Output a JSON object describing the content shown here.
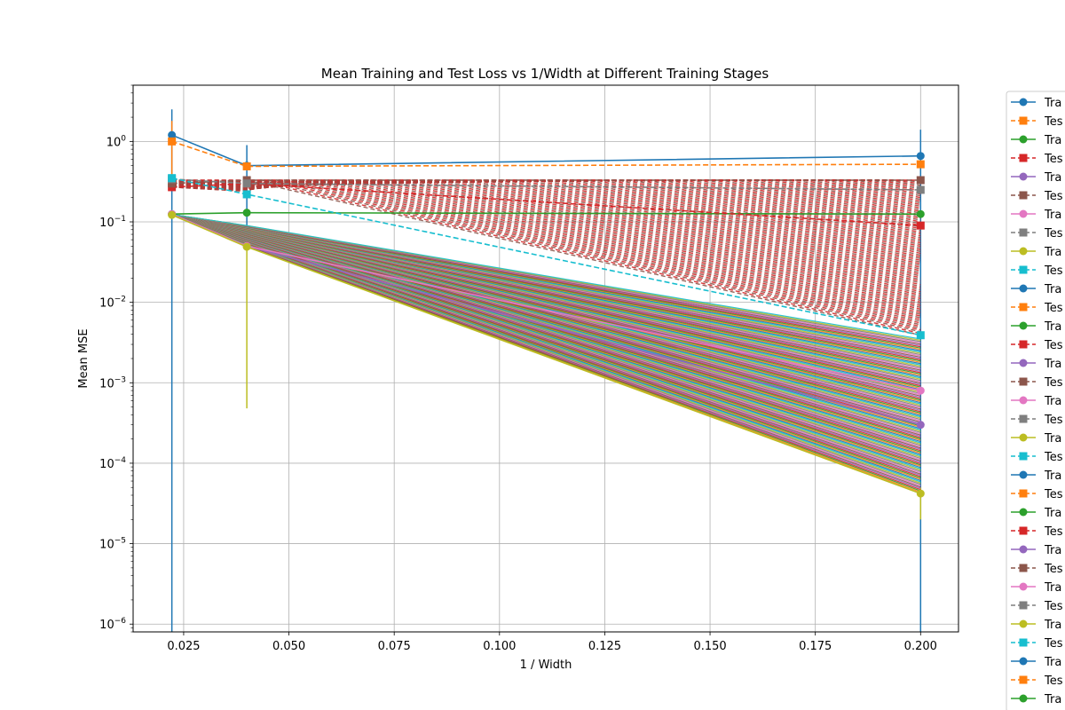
{
  "chart_data": {
    "type": "line",
    "title": "Mean Training and Test Loss vs 1/Width at Different Training Stages",
    "xlabel": "1 / Width",
    "ylabel": "Mean MSE",
    "yscale": "log",
    "xlim": [
      0.013,
      0.209
    ],
    "ylim": [
      8e-07,
      5
    ],
    "xticks": [
      "0.025",
      "0.050",
      "0.075",
      "0.100",
      "0.125",
      "0.150",
      "0.175",
      "0.200"
    ],
    "yticks": [
      "10^{-6}",
      "10^{-5}",
      "10^{-4}",
      "10^{-3}",
      "10^{-2}",
      "10^{-1}",
      "10^{0}"
    ],
    "grid": true,
    "legend_position": "outside-right",
    "x": [
      0.0222,
      0.04,
      0.2
    ],
    "series": [
      {
        "name": "Tra",
        "style": "solid",
        "marker": "circle",
        "color": "#1f77b4",
        "values": [
          1.2,
          0.5,
          0.66
        ]
      },
      {
        "name": "Tes",
        "style": "dashed",
        "marker": "square",
        "color": "#ff7f0e",
        "values": [
          1.0,
          0.49,
          0.52
        ]
      },
      {
        "name": "Tra",
        "style": "solid",
        "marker": "circle",
        "color": "#2ca02c",
        "values": [
          0.125,
          0.13,
          0.125
        ]
      },
      {
        "name": "Tes",
        "style": "dashed",
        "marker": "square",
        "color": "#d62728",
        "values": [
          0.27,
          0.3,
          0.09
        ]
      },
      {
        "name": "Tra",
        "style": "solid",
        "marker": "circle",
        "color": "#9467bd",
        "values": [
          0.125,
          0.05,
          0.0003
        ]
      },
      {
        "name": "Tes",
        "style": "dashed",
        "marker": "square",
        "color": "#8c564b",
        "values": [
          0.3,
          0.33,
          0.33
        ]
      },
      {
        "name": "Tra",
        "style": "solid",
        "marker": "circle",
        "color": "#e377c2",
        "values": [
          0.125,
          0.05,
          0.0008
        ]
      },
      {
        "name": "Tes",
        "style": "dashed",
        "marker": "square",
        "color": "#7f7f7f",
        "values": [
          0.34,
          0.3,
          0.25
        ]
      },
      {
        "name": "Tra",
        "style": "solid",
        "marker": "circle",
        "color": "#bcbd22",
        "values": [
          0.122,
          0.049,
          4.2e-05
        ]
      },
      {
        "name": "Tes",
        "style": "dashed",
        "marker": "square",
        "color": "#17becf",
        "values": [
          0.35,
          0.22,
          0.0039
        ]
      }
    ],
    "legend_entries": [
      {
        "label": "Tra",
        "style": "solid",
        "marker": "circle",
        "color": "#1f77b4"
      },
      {
        "label": "Tes",
        "style": "dashed",
        "marker": "square",
        "color": "#ff7f0e"
      },
      {
        "label": "Tra",
        "style": "solid",
        "marker": "circle",
        "color": "#2ca02c"
      },
      {
        "label": "Tes",
        "style": "dashed",
        "marker": "square",
        "color": "#d62728"
      },
      {
        "label": "Tra",
        "style": "solid",
        "marker": "circle",
        "color": "#9467bd"
      },
      {
        "label": "Tes",
        "style": "dashed",
        "marker": "square",
        "color": "#8c564b"
      },
      {
        "label": "Tra",
        "style": "solid",
        "marker": "circle",
        "color": "#e377c2"
      },
      {
        "label": "Tes",
        "style": "dashed",
        "marker": "square",
        "color": "#7f7f7f"
      },
      {
        "label": "Tra",
        "style": "solid",
        "marker": "circle",
        "color": "#bcbd22"
      },
      {
        "label": "Tes",
        "style": "dashed",
        "marker": "square",
        "color": "#17becf"
      },
      {
        "label": "Tra",
        "style": "solid",
        "marker": "circle",
        "color": "#1f77b4"
      },
      {
        "label": "Tes",
        "style": "dashed",
        "marker": "square",
        "color": "#ff7f0e"
      },
      {
        "label": "Tra",
        "style": "solid",
        "marker": "circle",
        "color": "#2ca02c"
      },
      {
        "label": "Tes",
        "style": "dashed",
        "marker": "square",
        "color": "#d62728"
      },
      {
        "label": "Tra",
        "style": "solid",
        "marker": "circle",
        "color": "#9467bd"
      },
      {
        "label": "Tes",
        "style": "dashed",
        "marker": "square",
        "color": "#8c564b"
      },
      {
        "label": "Tra",
        "style": "solid",
        "marker": "circle",
        "color": "#e377c2"
      },
      {
        "label": "Tes",
        "style": "dashed",
        "marker": "square",
        "color": "#7f7f7f"
      },
      {
        "label": "Tra",
        "style": "solid",
        "marker": "circle",
        "color": "#bcbd22"
      },
      {
        "label": "Tes",
        "style": "dashed",
        "marker": "square",
        "color": "#17becf"
      },
      {
        "label": "Tra",
        "style": "solid",
        "marker": "circle",
        "color": "#1f77b4"
      },
      {
        "label": "Tes",
        "style": "dashed",
        "marker": "square",
        "color": "#ff7f0e"
      },
      {
        "label": "Tra",
        "style": "solid",
        "marker": "circle",
        "color": "#2ca02c"
      },
      {
        "label": "Tes",
        "style": "dashed",
        "marker": "square",
        "color": "#d62728"
      },
      {
        "label": "Tra",
        "style": "solid",
        "marker": "circle",
        "color": "#9467bd"
      },
      {
        "label": "Tes",
        "style": "dashed",
        "marker": "square",
        "color": "#8c564b"
      },
      {
        "label": "Tra",
        "style": "solid",
        "marker": "circle",
        "color": "#e377c2"
      },
      {
        "label": "Tes",
        "style": "dashed",
        "marker": "square",
        "color": "#7f7f7f"
      },
      {
        "label": "Tra",
        "style": "solid",
        "marker": "circle",
        "color": "#bcbd22"
      },
      {
        "label": "Tes",
        "style": "dashed",
        "marker": "square",
        "color": "#17becf"
      },
      {
        "label": "Tra",
        "style": "solid",
        "marker": "circle",
        "color": "#1f77b4"
      },
      {
        "label": "Tes",
        "style": "dashed",
        "marker": "square",
        "color": "#ff7f0e"
      },
      {
        "label": "Tra",
        "style": "solid",
        "marker": "circle",
        "color": "#2ca02c"
      }
    ]
  }
}
